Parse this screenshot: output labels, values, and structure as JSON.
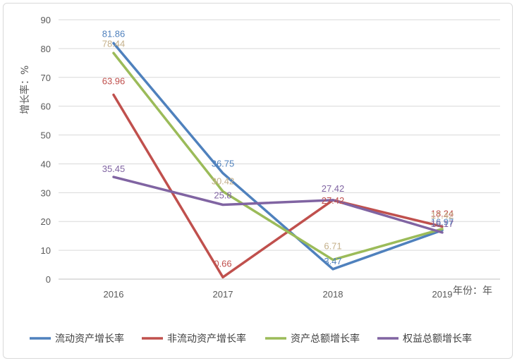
{
  "chart_data": {
    "type": "line",
    "categories": [
      "2016",
      "2017",
      "2018",
      "2019"
    ],
    "ylabel": "增长率：%",
    "xlabel": "年份：年",
    "ylim": [
      0,
      90
    ],
    "yticks": [
      0,
      10,
      20,
      30,
      40,
      50,
      60,
      70,
      80,
      90
    ],
    "grid": true,
    "legend_position": "bottom",
    "series": [
      {
        "name": "流动资产增长率",
        "color": "#4f81bd",
        "values": [
          81.86,
          36.75,
          3.47,
          16.97
        ],
        "labels": [
          "81.86",
          "36.75",
          "3.47",
          "16.97"
        ]
      },
      {
        "name": "非流动资产增长率",
        "color": "#c0504d",
        "values": [
          63.96,
          0.66,
          27.42,
          18.24
        ],
        "labels": [
          "63.96",
          "0.66",
          "27.42",
          "18.24"
        ]
      },
      {
        "name": "资产总额增长率",
        "color": "#9bbb59",
        "values": [
          78.44,
          30.42,
          6.71,
          17.42
        ],
        "labels": [
          "78.44",
          "30.42",
          "6.71",
          "17.42"
        ]
      },
      {
        "name": "权益总额增长率",
        "color": "#8064a2",
        "values": [
          35.45,
          25.8,
          27.42,
          16.17
        ],
        "labels": [
          "35.45",
          "25.8",
          "27.42",
          "16.17"
        ]
      }
    ]
  }
}
